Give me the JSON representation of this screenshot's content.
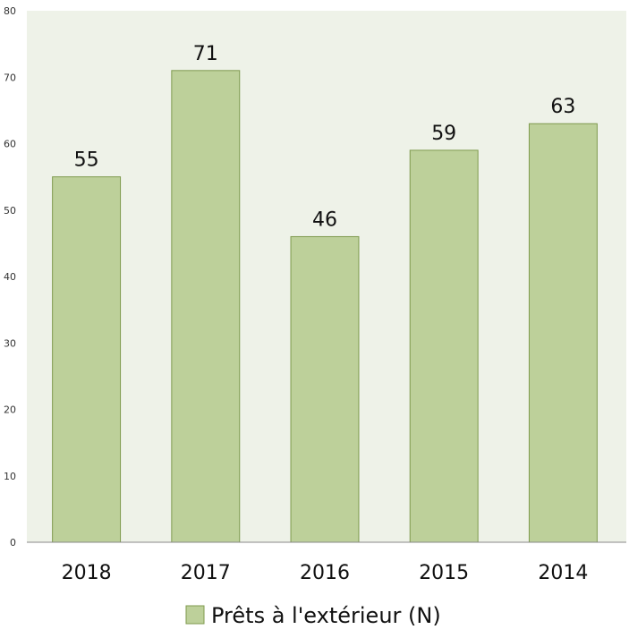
{
  "chart_data": {
    "type": "bar",
    "categories": [
      "2018",
      "2017",
      "2016",
      "2015",
      "2014"
    ],
    "series": [
      {
        "name": "Prêts à l'extérieur (N)",
        "values": [
          55,
          71,
          46,
          59,
          63
        ]
      }
    ],
    "ylim": [
      0,
      80
    ],
    "yticks": [
      0,
      10,
      20,
      30,
      40,
      50,
      60,
      70,
      80
    ],
    "grid": false,
    "legend_position": "bottom",
    "colors": {
      "plot_background": "#eef2e8",
      "bar_fill": "#bdd09a",
      "bar_stroke": "#7f9a4e",
      "axis": "#888888"
    }
  }
}
